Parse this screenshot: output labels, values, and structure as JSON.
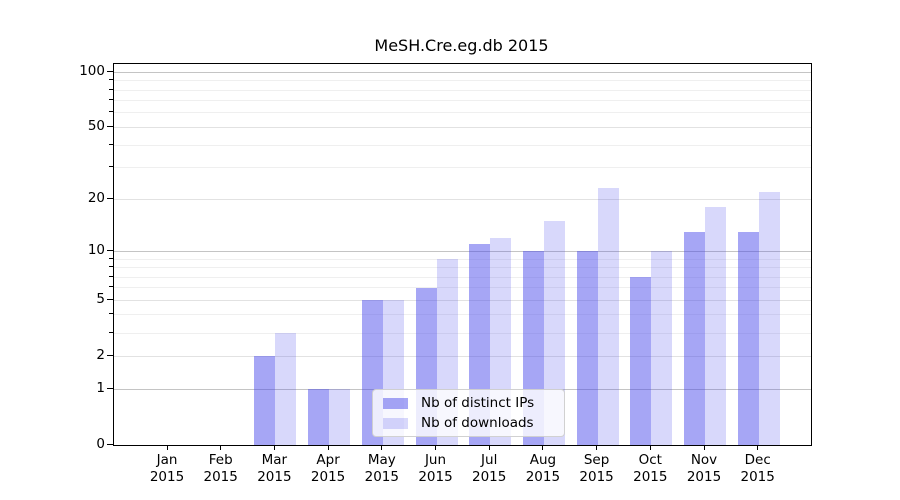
{
  "chart_data": {
    "type": "bar",
    "title": "MeSH.Cre.eg.db 2015",
    "months": [
      "Jan",
      "Feb",
      "Mar",
      "Apr",
      "May",
      "Jun",
      "Jul",
      "Aug",
      "Sep",
      "Oct",
      "Nov",
      "Dec"
    ],
    "year": "2015",
    "series": [
      {
        "name": "Nb of distinct IPs",
        "color": "#a6a6f7",
        "fill": "rgba(70,70,235,0.48)",
        "values": [
          0,
          0,
          2,
          1,
          5,
          6,
          11,
          10,
          10,
          7,
          13,
          13
        ]
      },
      {
        "name": "Nb of downloads",
        "color": "#d8d8f8",
        "fill": "rgba(70,70,235,0.21)",
        "values": [
          0,
          0,
          3,
          1,
          5,
          9,
          12,
          15,
          23,
          10,
          18,
          22
        ]
      }
    ],
    "y_scale": "log10(1+x)",
    "y_ticks": [
      0,
      1,
      2,
      5,
      10,
      20,
      50,
      100
    ],
    "y_minor_ticks": [
      3,
      4,
      6,
      7,
      8,
      9,
      30,
      40,
      60,
      70,
      80,
      90
    ],
    "ylim": [
      0,
      110
    ],
    "grid": true,
    "legend_position": "lower center",
    "grid_colors": {
      "decade": "#c4c4c4",
      "mid": "#e2e2e2",
      "minor": "#efefef"
    }
  }
}
